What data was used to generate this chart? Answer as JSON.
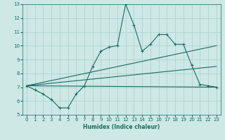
{
  "xlabel": "Humidex (Indice chaleur)",
  "bg_color": "#cde8e5",
  "grid_color": "#afd4d0",
  "line_color": "#1a6b60",
  "xlim": [
    -0.5,
    23.5
  ],
  "ylim": [
    5,
    13
  ],
  "xticks": [
    0,
    1,
    2,
    3,
    4,
    5,
    6,
    7,
    8,
    9,
    10,
    11,
    12,
    13,
    14,
    15,
    16,
    17,
    18,
    19,
    20,
    21,
    22,
    23
  ],
  "yticks": [
    5,
    6,
    7,
    8,
    9,
    10,
    11,
    12,
    13
  ],
  "line1_x": [
    0,
    1,
    2,
    3,
    4,
    5,
    6,
    7,
    8,
    9,
    10,
    11,
    12,
    13,
    14,
    15,
    16,
    17,
    18,
    19,
    20,
    21,
    22,
    23
  ],
  "line1_y": [
    7.1,
    6.8,
    6.5,
    6.1,
    5.5,
    5.5,
    6.5,
    7.1,
    8.5,
    9.6,
    9.9,
    10.0,
    13.0,
    11.5,
    9.6,
    10.1,
    10.8,
    10.8,
    10.1,
    10.1,
    8.6,
    7.2,
    7.1,
    7.0
  ],
  "line2_x": [
    0,
    23
  ],
  "line2_y": [
    7.1,
    10.0
  ],
  "line3_x": [
    0,
    23
  ],
  "line3_y": [
    7.1,
    8.5
  ],
  "line4_x": [
    0,
    23
  ],
  "line4_y": [
    7.1,
    7.0
  ]
}
